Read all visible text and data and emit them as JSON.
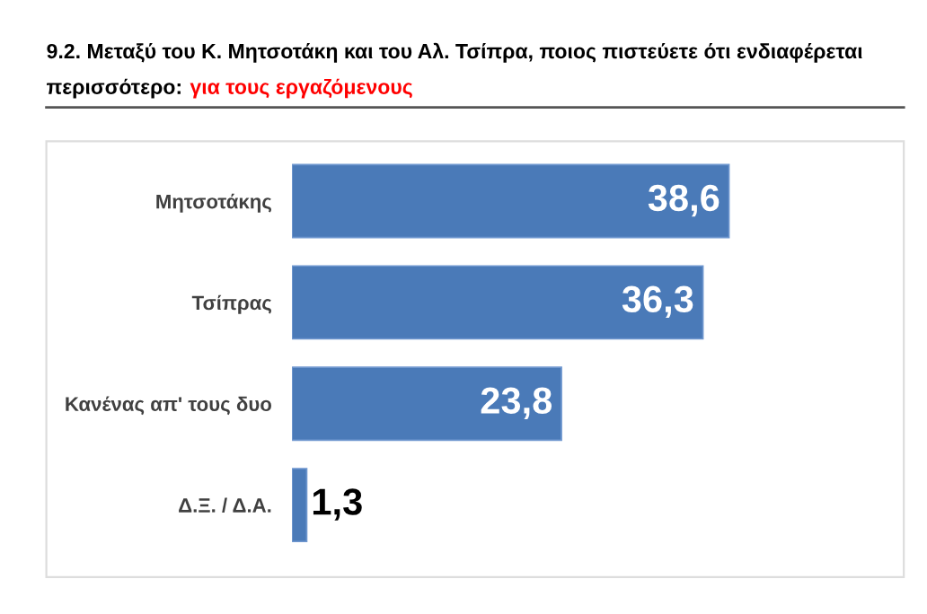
{
  "chart_data": {
    "type": "bar",
    "orientation": "horizontal",
    "title": "9.2. Μεταξύ του Κ. Μητσοτάκη και του Αλ. Τσίπρα, ποιος πιστεύετε ότι ενδιαφέρεται\nπερισσότερο:",
    "subtitle": "για τους εργαζόμενους",
    "categories": [
      "Μητσοτάκης",
      "Τσίπρας",
      "Κανένας απ' τους δυο",
      "Δ.Ξ. / Δ.Α."
    ],
    "values": [
      38.6,
      36.3,
      23.8,
      1.3
    ],
    "value_labels": [
      "38,6",
      "36,3",
      "23,8",
      "1,3"
    ],
    "color": "#4a7ab8"
  }
}
